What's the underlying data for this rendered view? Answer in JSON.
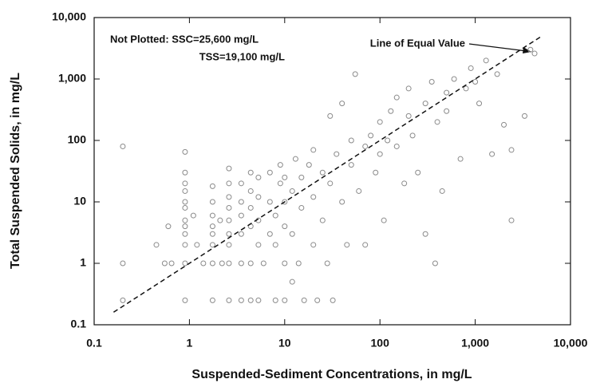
{
  "chart_data": {
    "type": "scatter",
    "xlabel": "Suspended-Sediment Concentrations, in mg/L",
    "ylabel": "Total Suspended Solids, in mg/L",
    "annotations": [
      "Not Plotted: SSC=25,600 mg/L",
      "TSS=19,100 mg/L"
    ],
    "log_x": true,
    "log_y": true,
    "color": "#8a8a8a",
    "xlim": [
      0.1,
      10000
    ],
    "ylim": [
      0.1,
      10000
    ],
    "xticks": [
      0.1,
      1,
      10,
      100,
      {
        "value": 1000,
        "label": "1,000"
      },
      {
        "value": 10000,
        "label": "10,000"
      }
    ],
    "yticks": [
      0.1,
      1,
      10,
      100,
      {
        "value": 1000,
        "label": "1,000"
      },
      {
        "value": 10000,
        "label": "10,000"
      }
    ],
    "reference_line": {
      "label": "Line of Equal Value",
      "color": "#111",
      "x": [
        0.16,
        5000
      ],
      "y": [
        0.16,
        5000
      ]
    },
    "x": [
      0.2,
      0.2,
      0.2,
      0.45,
      0.55,
      0.6,
      0.65,
      0.9,
      0.9,
      0.9,
      0.9,
      0.9,
      0.9,
      0.9,
      0.9,
      0.9,
      0.9,
      0.9,
      0.9,
      1.1,
      1.2,
      1.4,
      1.75,
      1.75,
      1.75,
      1.75,
      1.75,
      1.75,
      1.75,
      1.75,
      2.1,
      2.2,
      2.6,
      2.6,
      2.6,
      2.6,
      2.6,
      2.6,
      2.6,
      2.6,
      2.6,
      3.5,
      3.5,
      3.5,
      3.5,
      3.5,
      3.5,
      4.4,
      4.4,
      4.4,
      4.4,
      4.4,
      4.4,
      5.3,
      5.3,
      5.3,
      5.3,
      5.3,
      6,
      7,
      7,
      7,
      8,
      8,
      8,
      9,
      9,
      10,
      10,
      10,
      10,
      10,
      12,
      12,
      12,
      13,
      14,
      15,
      15,
      16,
      18,
      20,
      20,
      20,
      22,
      25,
      25,
      28,
      30,
      30,
      32,
      35,
      40,
      40,
      45,
      50,
      50,
      55,
      60,
      70,
      70,
      80,
      90,
      100,
      100,
      110,
      120,
      130,
      150,
      150,
      180,
      200,
      200,
      220,
      250,
      300,
      300,
      350,
      380,
      400,
      450,
      500,
      500,
      600,
      700,
      800,
      900,
      1000,
      1100,
      1300,
      1500,
      1700,
      2000,
      2400,
      2400,
      3300,
      3800,
      4200
    ],
    "y": [
      80,
      1,
      0.25,
      2,
      1,
      4,
      1,
      0.25,
      1,
      2,
      3,
      4,
      5,
      8,
      10,
      15,
      20,
      30,
      65,
      6,
      2,
      1,
      0.25,
      1,
      2,
      3,
      4,
      6,
      10,
      18,
      5,
      1,
      0.25,
      1,
      2,
      3,
      5,
      8,
      12,
      20,
      35,
      0.25,
      1,
      3,
      6,
      10,
      20,
      0.25,
      1,
      4,
      8,
      15,
      30,
      0.25,
      2,
      5,
      12,
      25,
      1,
      3,
      10,
      30,
      0.25,
      2,
      6,
      20,
      40,
      0.25,
      1,
      4,
      10,
      25,
      0.5,
      3,
      15,
      50,
      1,
      8,
      25,
      0.25,
      40,
      2,
      12,
      70,
      0.25,
      5,
      30,
      1,
      20,
      250,
      0.25,
      60,
      10,
      400,
      2,
      40,
      100,
      1200,
      15,
      80,
      2,
      120,
      30,
      200,
      60,
      5,
      100,
      300,
      80,
      500,
      20,
      250,
      700,
      120,
      30,
      400,
      3,
      900,
      1,
      200,
      15,
      600,
      300,
      1000,
      50,
      700,
      1500,
      900,
      400,
      2000,
      60,
      1200,
      180,
      70,
      5,
      250,
      3000,
      2600
    ]
  }
}
